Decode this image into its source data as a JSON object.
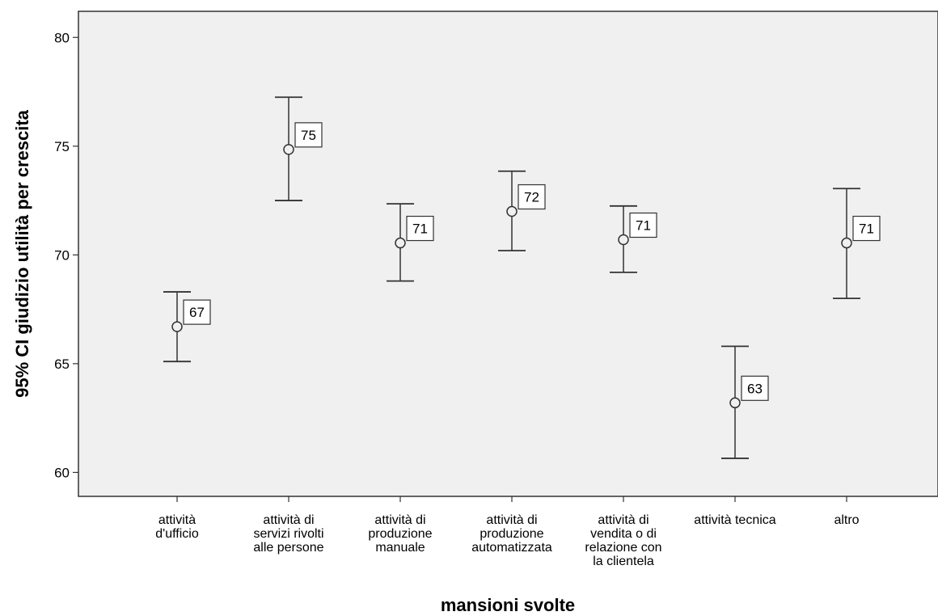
{
  "chart_data": {
    "type": "error-bar",
    "xlabel": "mansioni svolte",
    "ylabel": "95% CI giudizio utilità per crescita",
    "ylim": [
      58.9,
      81.2
    ],
    "yticks": [
      60,
      65,
      70,
      75,
      80
    ],
    "ytick_labels": [
      "60",
      "65",
      "70",
      "75",
      "80"
    ],
    "grid": false,
    "plot_background": "#f0f0f0",
    "categories": [
      [
        "attività",
        "d'ufficio"
      ],
      [
        "attività di",
        "servizi rivolti",
        "alle persone"
      ],
      [
        "attività di",
        "produzione",
        "manuale"
      ],
      [
        "attività di",
        "produzione",
        "automatizzata"
      ],
      [
        "attività di",
        "vendita o di",
        "relazione con",
        "la clientela"
      ],
      [
        "attività tecnica"
      ],
      [
        "altro"
      ]
    ],
    "means": [
      66.7,
      74.85,
      70.55,
      72.0,
      70.7,
      63.2,
      70.55
    ],
    "lower": [
      65.1,
      72.5,
      68.8,
      70.2,
      69.2,
      60.65,
      68.0
    ],
    "upper": [
      68.3,
      77.25,
      72.35,
      73.85,
      72.25,
      65.8,
      73.05
    ],
    "data_labels": [
      "67",
      "75",
      "71",
      "72",
      "71",
      "63",
      "71"
    ]
  }
}
